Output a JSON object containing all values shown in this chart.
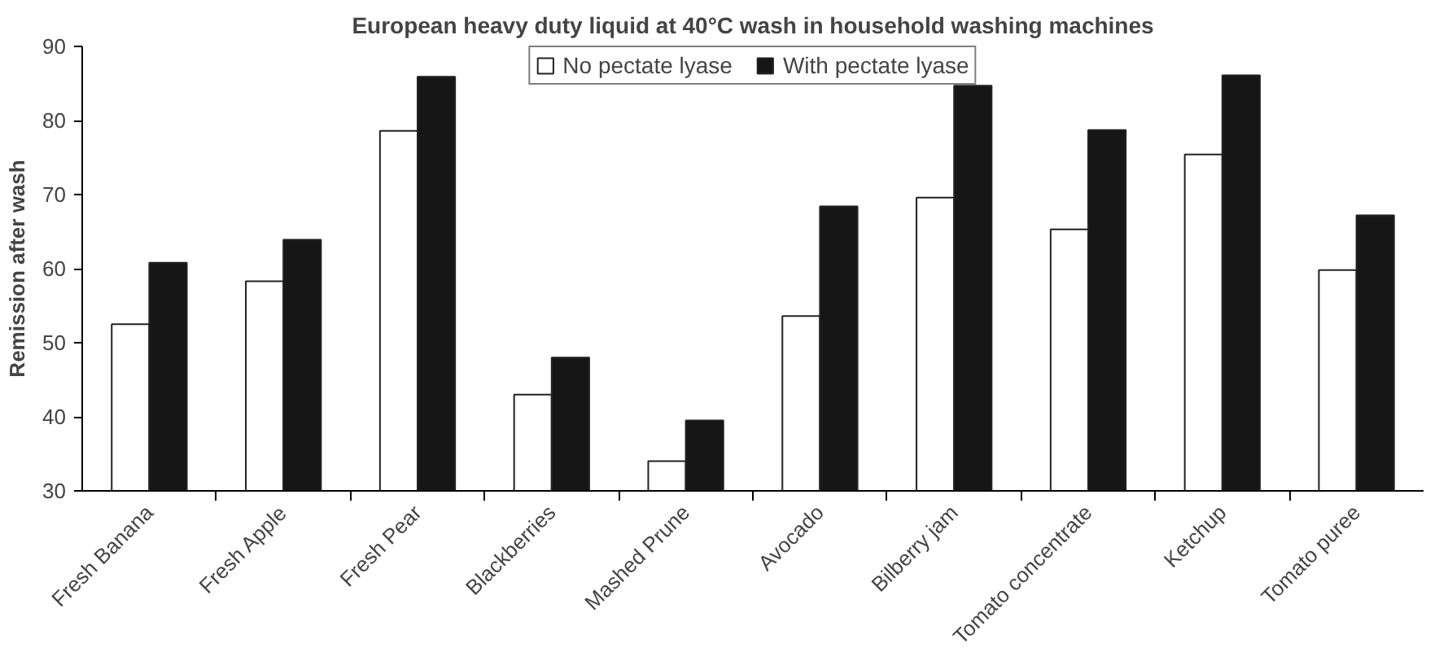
{
  "chart_data": {
    "type": "bar",
    "title": "European heavy duty liquid at 40°C wash in household washing machines",
    "ylabel": "Remission after wash",
    "categories": [
      "Fresh Banana",
      "Fresh Apple",
      "Fresh Pear",
      "Blackberries",
      "Mashed Prune",
      "Avocado",
      "Bilberry jam",
      "Tomato concentrate",
      "Ketchup",
      "Tomato puree"
    ],
    "series": [
      {
        "name": "No pectate lyase",
        "color": "#ffffff",
        "values": [
          52.5,
          58.3,
          78.6,
          43.0,
          34.0,
          53.6,
          69.6,
          65.3,
          75.4,
          59.8
        ]
      },
      {
        "name": "With pectate lyase",
        "color": "#161616",
        "values": [
          60.8,
          63.9,
          85.9,
          48.0,
          39.5,
          68.4,
          84.7,
          78.7,
          86.1,
          67.2
        ]
      }
    ],
    "ylim": [
      30,
      90
    ],
    "yticks": [
      30,
      40,
      50,
      60,
      70,
      80,
      90
    ],
    "grid": false,
    "legend": "top"
  }
}
